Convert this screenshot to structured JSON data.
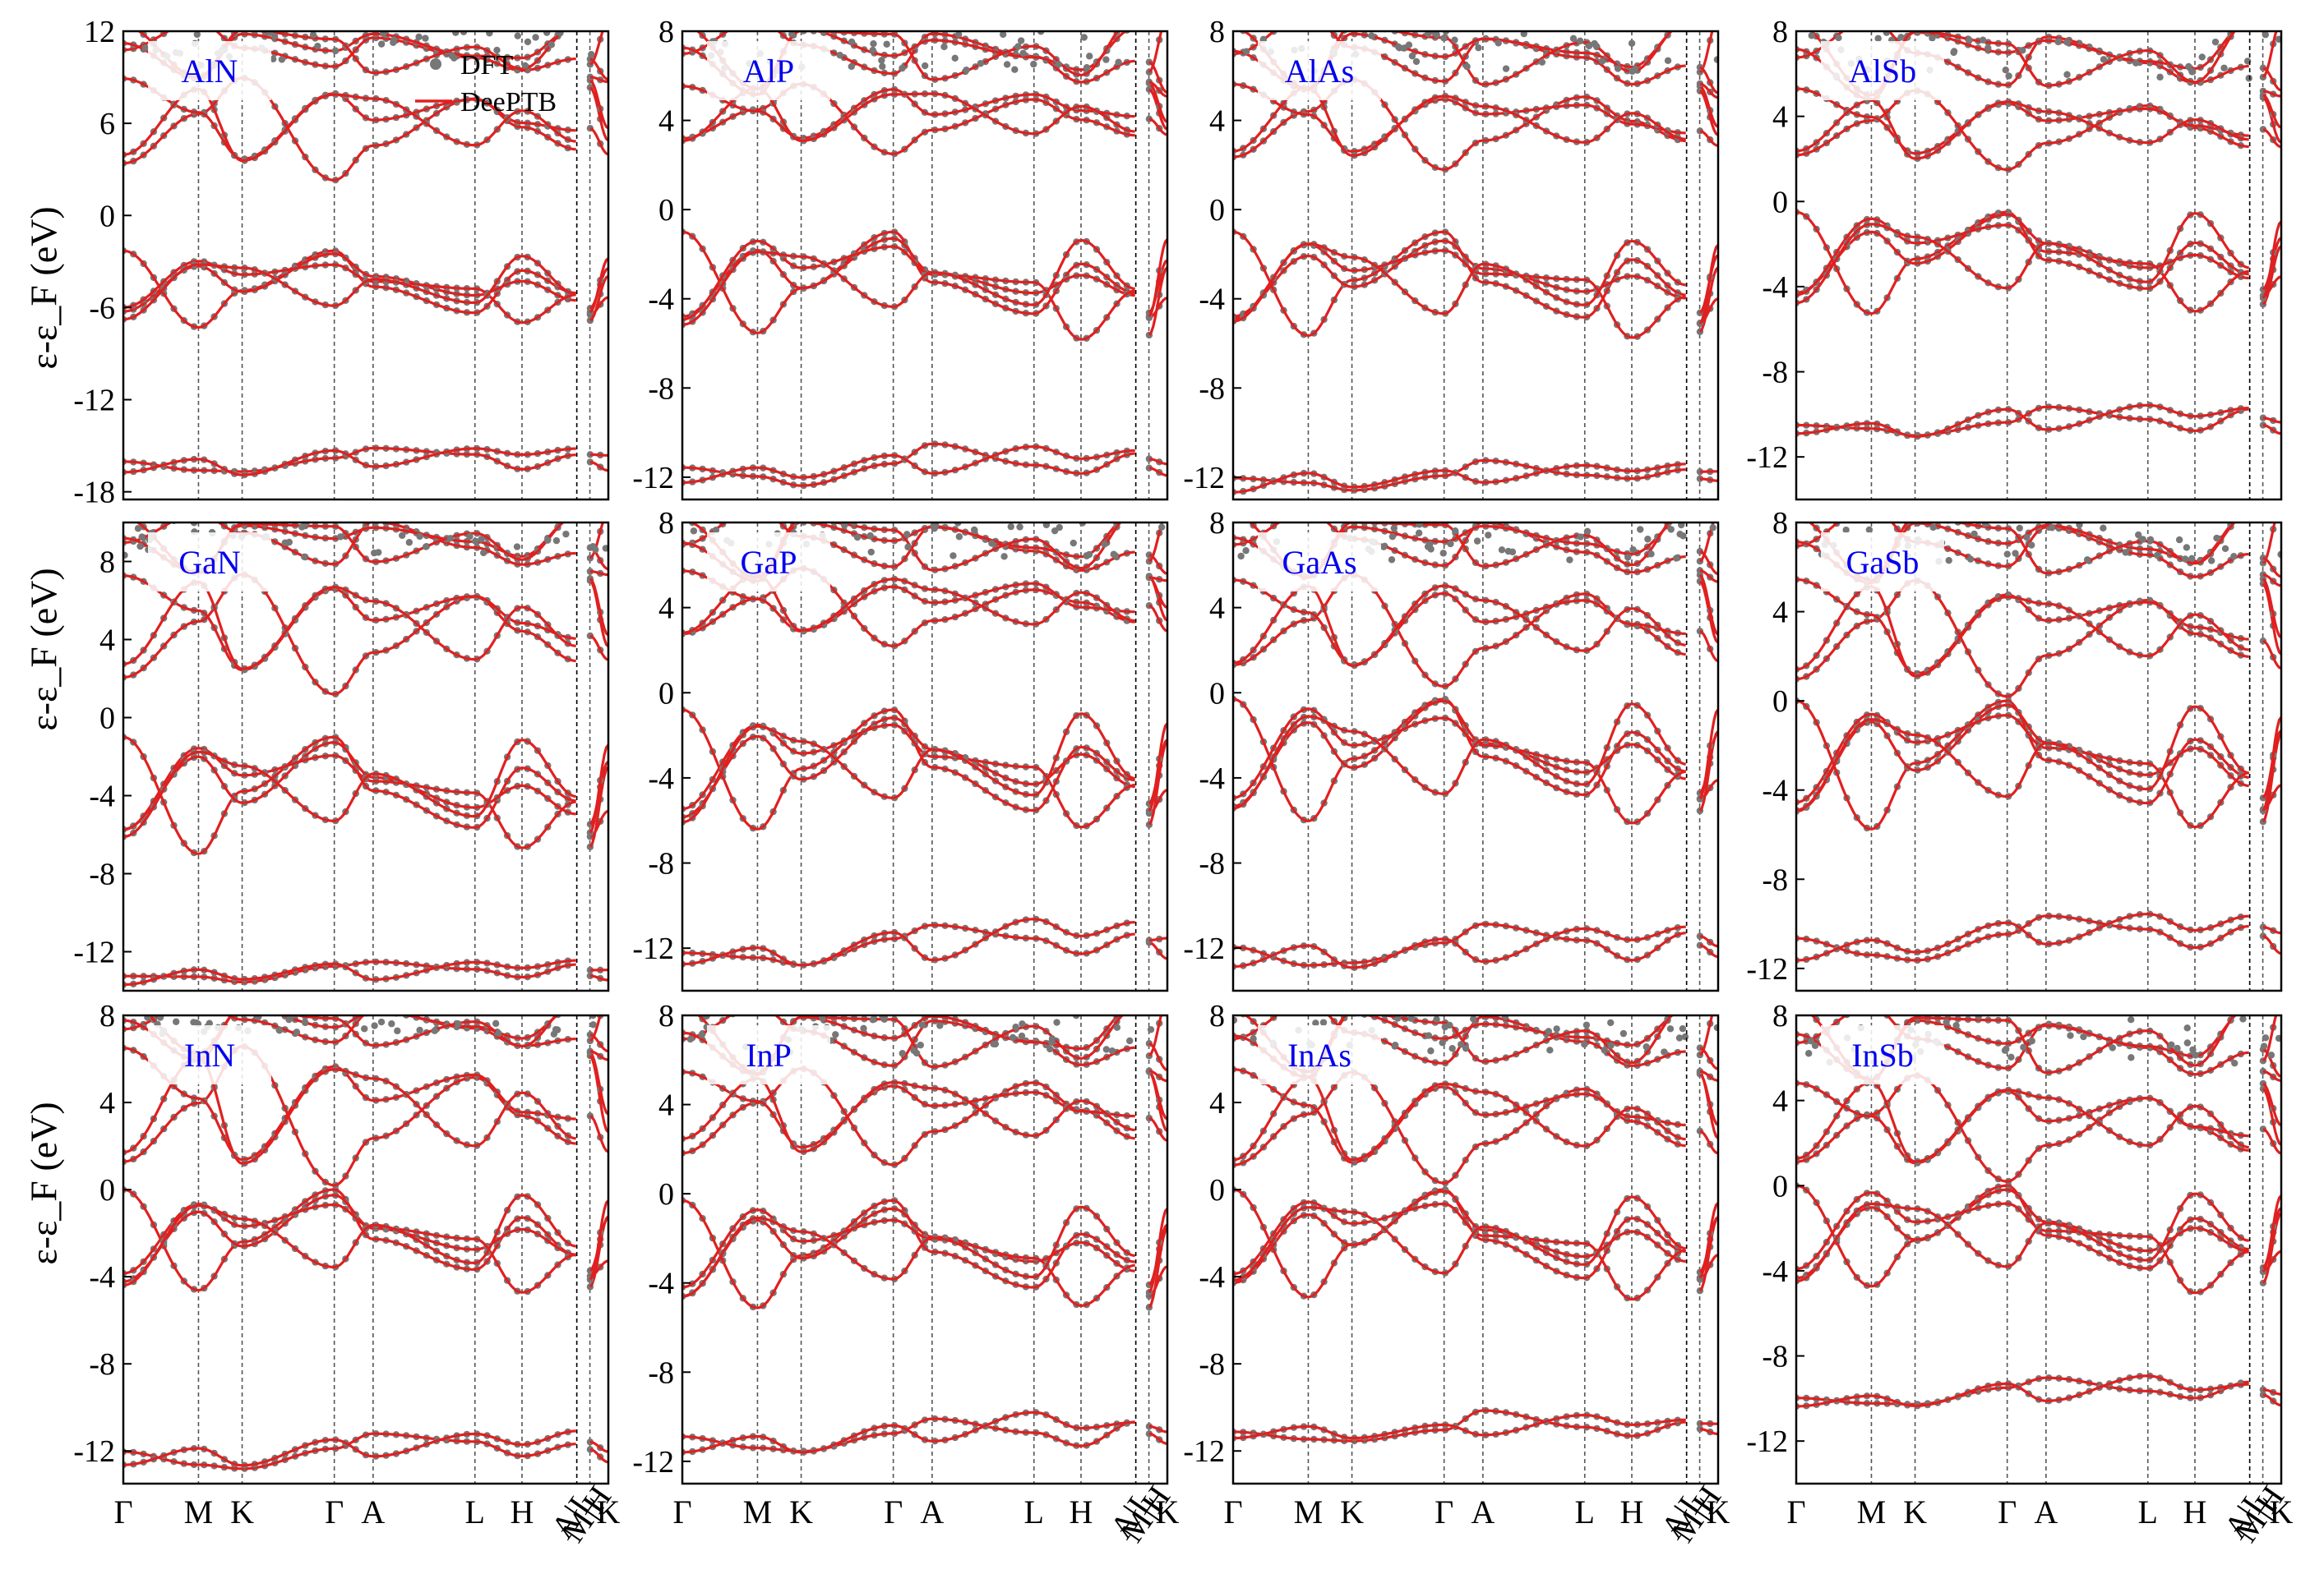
{
  "figure": {
    "ylabel": "ε-ε_F (eV)",
    "kpath_labels": [
      "Γ",
      "M",
      "K",
      "Γ",
      "A",
      "L",
      "H",
      "A|L",
      "M|H",
      "K"
    ],
    "legend": [
      {
        "name": "DFT",
        "marker": "circle",
        "color": "#777777"
      },
      {
        "name": "DeePTB",
        "marker": "line",
        "color": "#e02020"
      }
    ],
    "colors": {
      "dft": "#777777",
      "deeptb": "#e02020",
      "material_label": "#0000ee",
      "kpoint_line": "#555555"
    }
  },
  "chart_data": [
    {
      "type": "line",
      "title": "AlN",
      "ylim": [
        -18.5,
        12
      ],
      "yticks": [
        12,
        6,
        0,
        -6,
        -12,
        -18
      ],
      "bands": {
        "top_mid": 9.5,
        "cb_min": 2.3,
        "vb_max": -2.3,
        "vb_min": -8,
        "s_band": [
          -17.2,
          -14.8
        ]
      }
    },
    {
      "type": "line",
      "title": "AlP",
      "ylim": [
        -13,
        8
      ],
      "yticks": [
        8,
        4,
        0,
        -4,
        -8,
        -12
      ],
      "bands": {
        "top_mid": 6,
        "cb_min": 2.5,
        "vb_max": -1,
        "vb_min": -6.5,
        "s_band": [
          -12.5,
          -10.5
        ]
      }
    },
    {
      "type": "line",
      "title": "AlAs",
      "ylim": [
        -13,
        8
      ],
      "yticks": [
        8,
        4,
        0,
        -4,
        -8,
        -12
      ],
      "bands": {
        "top_mid": 6,
        "cb_min": 1.8,
        "vb_max": -1,
        "vb_min": -6.5,
        "s_band": [
          -12.7,
          -11.2
        ]
      }
    },
    {
      "type": "line",
      "title": "AlSb",
      "ylim": [
        -14,
        8
      ],
      "yticks": [
        8,
        4,
        0,
        -4,
        -8,
        -12
      ],
      "bands": {
        "top_mid": 5.5,
        "cb_min": 1.5,
        "vb_max": -0.5,
        "vb_min": -6,
        "s_band": [
          -11.2,
          -9.5
        ]
      }
    },
    {
      "type": "line",
      "title": "GaN",
      "ylim": [
        -14,
        10
      ],
      "yticks": [
        8,
        4,
        0,
        -4,
        -8,
        -12
      ],
      "bands": {
        "top_mid": 8,
        "cb_min": 1.2,
        "vb_max": -1,
        "vb_min": -7.8,
        "s_band": [
          -13.8,
          -12.3
        ]
      }
    },
    {
      "type": "line",
      "title": "GaP",
      "ylim": [
        -14,
        8
      ],
      "yticks": [
        8,
        4,
        0,
        -4,
        -8,
        -12
      ],
      "bands": {
        "top_mid": 6,
        "cb_min": 2.2,
        "vb_max": -0.8,
        "vb_min": -7.5,
        "s_band": [
          -13.3,
          -10.5
        ]
      }
    },
    {
      "type": "line",
      "title": "GaAs",
      "ylim": [
        -14,
        8
      ],
      "yticks": [
        8,
        4,
        0,
        -4,
        -8,
        -12
      ],
      "bands": {
        "top_mid": 6,
        "cb_min": 0.3,
        "vb_max": -0.3,
        "vb_min": -7,
        "s_band": [
          -13.2,
          -10.8
        ]
      }
    },
    {
      "type": "line",
      "title": "GaSb",
      "ylim": [
        -13,
        8
      ],
      "yticks": [
        8,
        4,
        0,
        -4,
        -8,
        -12
      ],
      "bands": {
        "top_mid": 6,
        "cb_min": 0.2,
        "vb_max": 0,
        "vb_min": -6.6,
        "s_band": [
          -11.8,
          -9.5
        ]
      }
    },
    {
      "type": "line",
      "title": "InN",
      "ylim": [
        -13.5,
        8
      ],
      "yticks": [
        8,
        4,
        0,
        -4,
        -8,
        -12
      ],
      "bands": {
        "top_mid": 7,
        "cb_min": 0.2,
        "vb_max": 0,
        "vb_min": -5.6,
        "s_band": [
          -13,
          -11
        ]
      }
    },
    {
      "type": "line",
      "title": "InP",
      "ylim": [
        -13,
        8
      ],
      "yticks": [
        8,
        4,
        0,
        -4,
        -8,
        -12
      ],
      "bands": {
        "top_mid": 6,
        "cb_min": 1.3,
        "vb_max": -0.3,
        "vb_min": -6,
        "s_band": [
          -11.8,
          -9.8
        ]
      }
    },
    {
      "type": "line",
      "title": "InAs",
      "ylim": [
        -13.5,
        8
      ],
      "yticks": [
        8,
        4,
        0,
        -4,
        -8,
        -12
      ],
      "bands": {
        "top_mid": 6,
        "cb_min": 0.3,
        "vb_max": 0,
        "vb_min": -5.7,
        "s_band": [
          -11.8,
          -10.2
        ]
      }
    },
    {
      "type": "line",
      "title": "InSb",
      "ylim": [
        -14,
        8
      ],
      "yticks": [
        8,
        4,
        0,
        -4,
        -8,
        -12
      ],
      "bands": {
        "top_mid": 5.5,
        "cb_min": 0.2,
        "vb_max": 0,
        "vb_min": -5.8,
        "s_band": [
          -10.6,
          -9
        ]
      }
    }
  ]
}
